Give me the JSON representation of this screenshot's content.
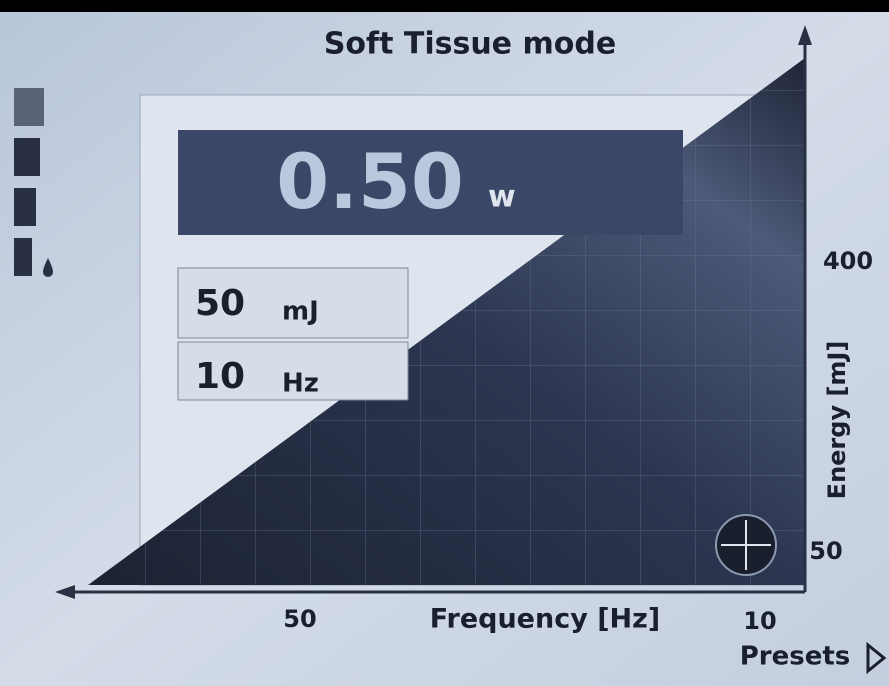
{
  "header": {
    "title": "Soft Tissue mode"
  },
  "power": {
    "value": "0.50",
    "unit": "w"
  },
  "settings": [
    {
      "value": "50",
      "unit": "mJ"
    },
    {
      "value": "10",
      "unit": "Hz"
    }
  ],
  "energy_axis": {
    "label": "Energy [mJ]",
    "max": "400",
    "min": "50"
  },
  "frequency_axis": {
    "label": "Frequency [Hz]",
    "left": "50",
    "right": "10"
  },
  "presets": {
    "label": "Presets"
  }
}
